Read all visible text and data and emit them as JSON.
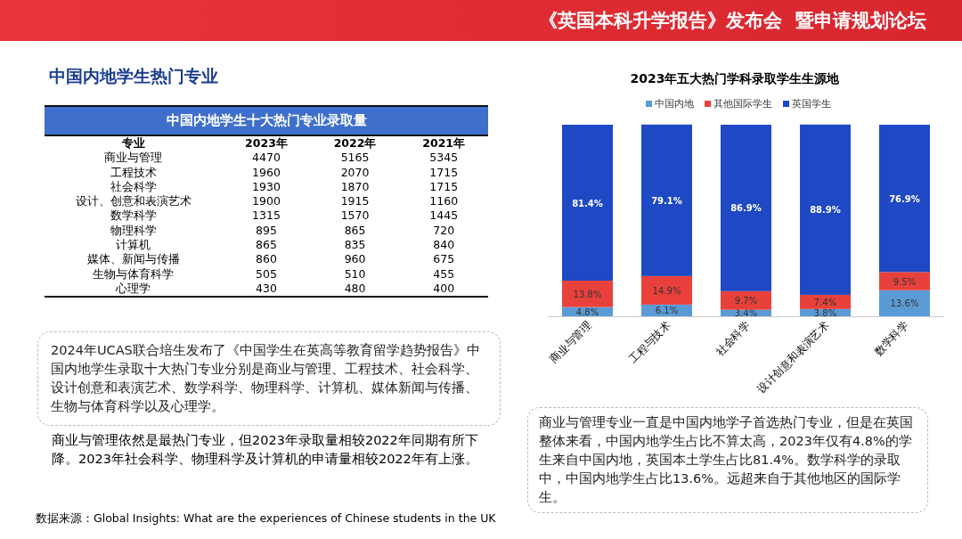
{
  "chart_data": [
    {
      "type": "other",
      "title": "中国内地学生热门专业",
      "subtitle": "中国内地学生十大热门专业录取量",
      "xlabel": "专业",
      "categories": [
        "商业与管理",
        "工程技术",
        "社会科学",
        "设计、创意和表演艺术",
        "数学科学",
        "物理科学",
        "计算机",
        "媒体、新闻与传播",
        "生物与体育科学",
        "心理学"
      ],
      "series": [
        {
          "name": "2023年",
          "values": [
            4470,
            1960,
            1930,
            1900,
            1315,
            895,
            865,
            860,
            505,
            430
          ]
        },
        {
          "name": "2022年",
          "values": [
            5165,
            2070,
            1870,
            1915,
            1570,
            865,
            835,
            960,
            510,
            480
          ]
        },
        {
          "name": "2021年",
          "values": [
            5345,
            1715,
            1715,
            1160,
            1445,
            720,
            840,
            675,
            455,
            400
          ]
        }
      ],
      "data_labels": true,
      "annotations": [
        "《英国本科升学报告》发布会  暨申请规划论坛",
        "2024年UCAS联合培生发布了《中国学生在英高等教育留学趋势报告》中国内地学生录取十大热门专业分别是商业与管理、工程技术、社会科学、设计创意和表演艺术、数学科学、物理科学、计算机、媒体新闻与传播、生物与体育科学以及心理学。",
        "商业与管理依然是最热门专业，但2023年录取量相较2022年同期有所下降。2023年社会科学、物理科学及计算机的申请量相较2022年有上涨。",
        "数据来源：Global Insights: What are the experiences of Chinese students in the UK"
      ]
    },
    {
      "type": "bar",
      "title": "2023年五大热门学科录取学生生源地",
      "stacked": true,
      "legend": "top",
      "tick_labels": "x",
      "ylim": [
        0,
        100
      ],
      "categories": [
        "商业与管理",
        "工程与技术",
        "社会科学",
        "设计创意和表演艺术",
        "数学科学"
      ],
      "series": [
        {
          "name": "中国内地",
          "color": "#5b9bd5",
          "values": [
            4.8,
            6.1,
            3.4,
            3.8,
            13.6
          ],
          "value_labels": [
            "4.8%",
            "6.1%",
            "3.4%",
            "3.8%",
            "13.6%"
          ]
        },
        {
          "name": "其他国际学生",
          "color": "#e8413c",
          "values": [
            13.8,
            14.9,
            9.7,
            7.4,
            9.5
          ],
          "value_labels": [
            "13.8%",
            "14.9%",
            "9.7%",
            "7.4%",
            "9.5%"
          ]
        },
        {
          "name": "英国学生",
          "color": "#1f48c4",
          "values": [
            81.4,
            79.1,
            86.9,
            88.9,
            76.9
          ],
          "value_labels": [
            "81.4%",
            "79.1%",
            "86.9%",
            "88.9%",
            "76.9%"
          ]
        }
      ],
      "annotations": [
        "商业与管理专业一直是中国内地学子首选热门专业，但是在英国整体来看，中国内地学生占比不算太高，2023年仅有4.8%的学生来自中国内地，英国本土学生占比81.4%。数学科学的录取中，中国内地学生占比13.6%。远超来自于其他地区的国际学生。"
      ]
    }
  ]
}
